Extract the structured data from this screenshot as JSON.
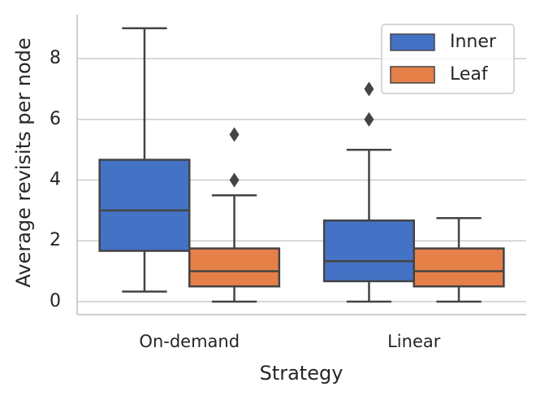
{
  "chart_data": {
    "type": "box",
    "xlabel": "Strategy",
    "ylabel": "Average revisits per node",
    "categories": [
      "On-demand",
      "Linear"
    ],
    "series": [
      {
        "name": "Inner",
        "color": "#4472c4",
        "values": [
          {
            "whislo": 0.33,
            "q1": 1.67,
            "med": 3.0,
            "q3": 4.67,
            "whishi": 9.0,
            "fliers": []
          },
          {
            "whislo": 0.0,
            "q1": 0.67,
            "med": 1.33,
            "q3": 2.67,
            "whishi": 5.0,
            "fliers": [
              6.0,
              7.0
            ]
          }
        ]
      },
      {
        "name": "Leaf",
        "color": "#e58049",
        "values": [
          {
            "whislo": 0.0,
            "q1": 0.5,
            "med": 1.0,
            "q3": 1.75,
            "whishi": 3.5,
            "fliers": [
              4.0,
              5.5
            ]
          },
          {
            "whislo": 0.0,
            "q1": 0.5,
            "med": 1.0,
            "q3": 1.75,
            "whishi": 2.75,
            "fliers": []
          }
        ]
      }
    ],
    "ylim": [
      -0.43,
      9.45
    ],
    "yticks": [
      0,
      2,
      4,
      6,
      8
    ],
    "grid": true,
    "legend": "upper right"
  }
}
